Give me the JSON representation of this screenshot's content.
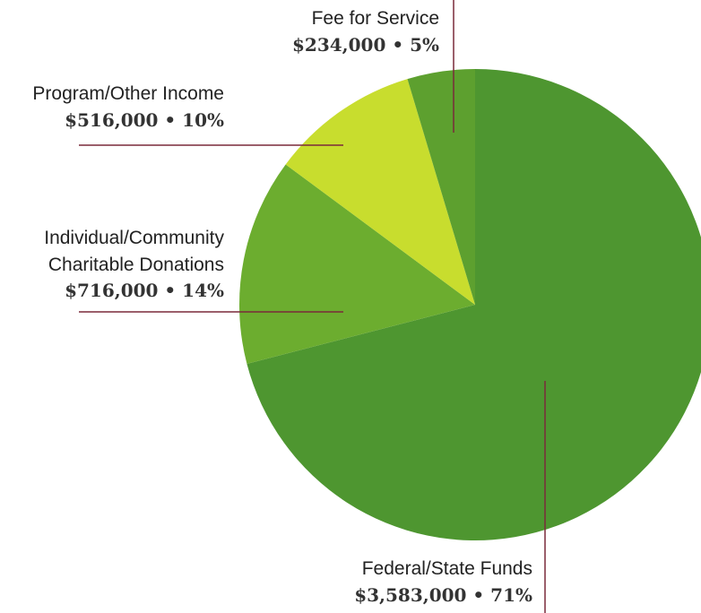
{
  "chart_data": {
    "type": "pie",
    "start_angle_deg": -90,
    "direction": "clockwise",
    "slices": [
      {
        "label": "Federal/State Funds",
        "label_lines": [
          "Federal/State Funds"
        ],
        "display": "$3,583,000 • 71%",
        "value": 3583000,
        "percent": 71,
        "color": "#4e9630"
      },
      {
        "label": "Individual/Community Charitable Donations",
        "label_lines": [
          "Individual/Community",
          "Charitable Donations"
        ],
        "display": "$716,000 • 14%",
        "value": 716000,
        "percent": 14,
        "color": "#6cad2f"
      },
      {
        "label": "Program/Other Income",
        "label_lines": [
          "Program/Other Income"
        ],
        "display": "$516,000 • 10%",
        "value": 516000,
        "percent": 10,
        "color": "#c8dd2e"
      },
      {
        "label": "Fee for Service",
        "label_lines": [
          "Fee for Service"
        ],
        "display": "$234,000 • 5%",
        "value": 234000,
        "percent": 5,
        "color": "#5da02f"
      }
    ],
    "leader_line_color": "#7a2a3a"
  }
}
